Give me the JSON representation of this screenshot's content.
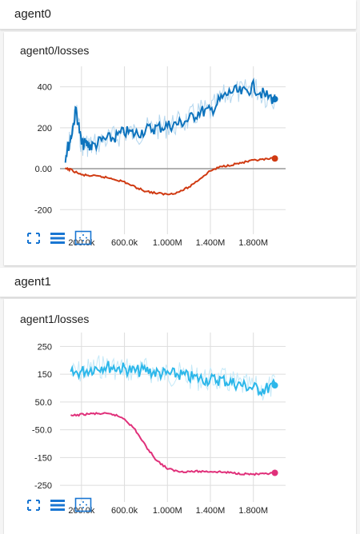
{
  "sections": [
    {
      "header": "agent0",
      "card_title": "agent0/losses",
      "buttons": [
        "fullscreen-icon",
        "list-icon",
        "fit-domain-icon"
      ]
    },
    {
      "header": "agent1",
      "card_title": "agent1/losses",
      "buttons": [
        "fullscreen-icon",
        "list-icon",
        "fit-domain-icon"
      ]
    }
  ],
  "colors": {
    "accent": "#1976d2",
    "agent0_blue": "#0d73bd",
    "agent0_blue_light": "#b3d6ee",
    "agent0_red": "#d03a12",
    "agent1_cyan": "#2cb7ea",
    "agent1_cyan_light": "#c4e9f8",
    "agent1_pink": "#e0307a",
    "grid": "#dddddd",
    "zero_line": "#999999"
  },
  "chart_data": [
    {
      "type": "line",
      "title": "agent0/losses",
      "x_ticks": [
        "200.0k",
        "600.0k",
        "1.000M",
        "1.400M",
        "1.800M"
      ],
      "x_tick_values": [
        200000,
        600000,
        1000000,
        1400000,
        1800000
      ],
      "xlim": [
        0,
        2100000
      ],
      "y_ticks": [
        "400",
        "200",
        "0.00",
        "-200"
      ],
      "y_tick_values": [
        400,
        200,
        0,
        -200
      ],
      "ylim": [
        -320,
        500
      ],
      "grid": true,
      "series": [
        {
          "color": "#0d73bd",
          "x": [
            50000,
            100000,
            150000,
            200000,
            250000,
            300000,
            400000,
            500000,
            600000,
            700000,
            800000,
            900000,
            1000000,
            1100000,
            1200000,
            1300000,
            1400000,
            1500000,
            1600000,
            1700000,
            1800000,
            1900000,
            2000000
          ],
          "y": [
            60,
            150,
            290,
            120,
            120,
            110,
            140,
            150,
            180,
            170,
            190,
            200,
            210,
            220,
            240,
            280,
            280,
            340,
            380,
            370,
            400,
            360,
            340
          ]
        },
        {
          "color": "#d03a12",
          "x": [
            50000,
            100000,
            200000,
            300000,
            400000,
            500000,
            600000,
            700000,
            800000,
            900000,
            1000000,
            1100000,
            1200000,
            1300000,
            1400000,
            1500000,
            1600000,
            1700000,
            1800000,
            1900000,
            2000000
          ],
          "y": [
            0,
            -5,
            -30,
            -35,
            -40,
            -50,
            -65,
            -90,
            -110,
            -120,
            -125,
            -115,
            -90,
            -50,
            -10,
            10,
            20,
            30,
            40,
            45,
            50
          ]
        }
      ]
    },
    {
      "type": "line",
      "title": "agent1/losses",
      "x_ticks": [
        "200.0k",
        "600.0k",
        "1.000M",
        "1.400M",
        "1.800M"
      ],
      "x_tick_values": [
        200000,
        600000,
        1000000,
        1400000,
        1800000
      ],
      "xlim": [
        0,
        2100000
      ],
      "y_ticks": [
        "250",
        "150",
        "50.0",
        "-50.0",
        "-150",
        "-250"
      ],
      "y_tick_values": [
        250,
        150,
        50,
        -50,
        -150,
        -250
      ],
      "ylim": [
        -310,
        300
      ],
      "grid": true,
      "series": [
        {
          "color": "#2cb7ea",
          "x": [
            100000,
            200000,
            300000,
            400000,
            500000,
            600000,
            700000,
            800000,
            900000,
            1000000,
            1100000,
            1200000,
            1300000,
            1400000,
            1500000,
            1600000,
            1700000,
            1800000,
            1900000,
            2000000
          ],
          "y": [
            150,
            160,
            170,
            180,
            175,
            170,
            160,
            165,
            155,
            150,
            150,
            140,
            135,
            130,
            130,
            120,
            110,
            100,
            95,
            110
          ]
        },
        {
          "color": "#e0307a",
          "x": [
            100000,
            200000,
            300000,
            400000,
            500000,
            600000,
            700000,
            800000,
            900000,
            1000000,
            1100000,
            1200000,
            1300000,
            1400000,
            1500000,
            1600000,
            1700000,
            1800000,
            1900000,
            2000000
          ],
          "y": [
            0,
            5,
            8,
            8,
            5,
            -10,
            -50,
            -110,
            -160,
            -190,
            -200,
            -200,
            -200,
            -200,
            -202,
            -205,
            -208,
            -210,
            -210,
            -205
          ]
        }
      ]
    }
  ]
}
